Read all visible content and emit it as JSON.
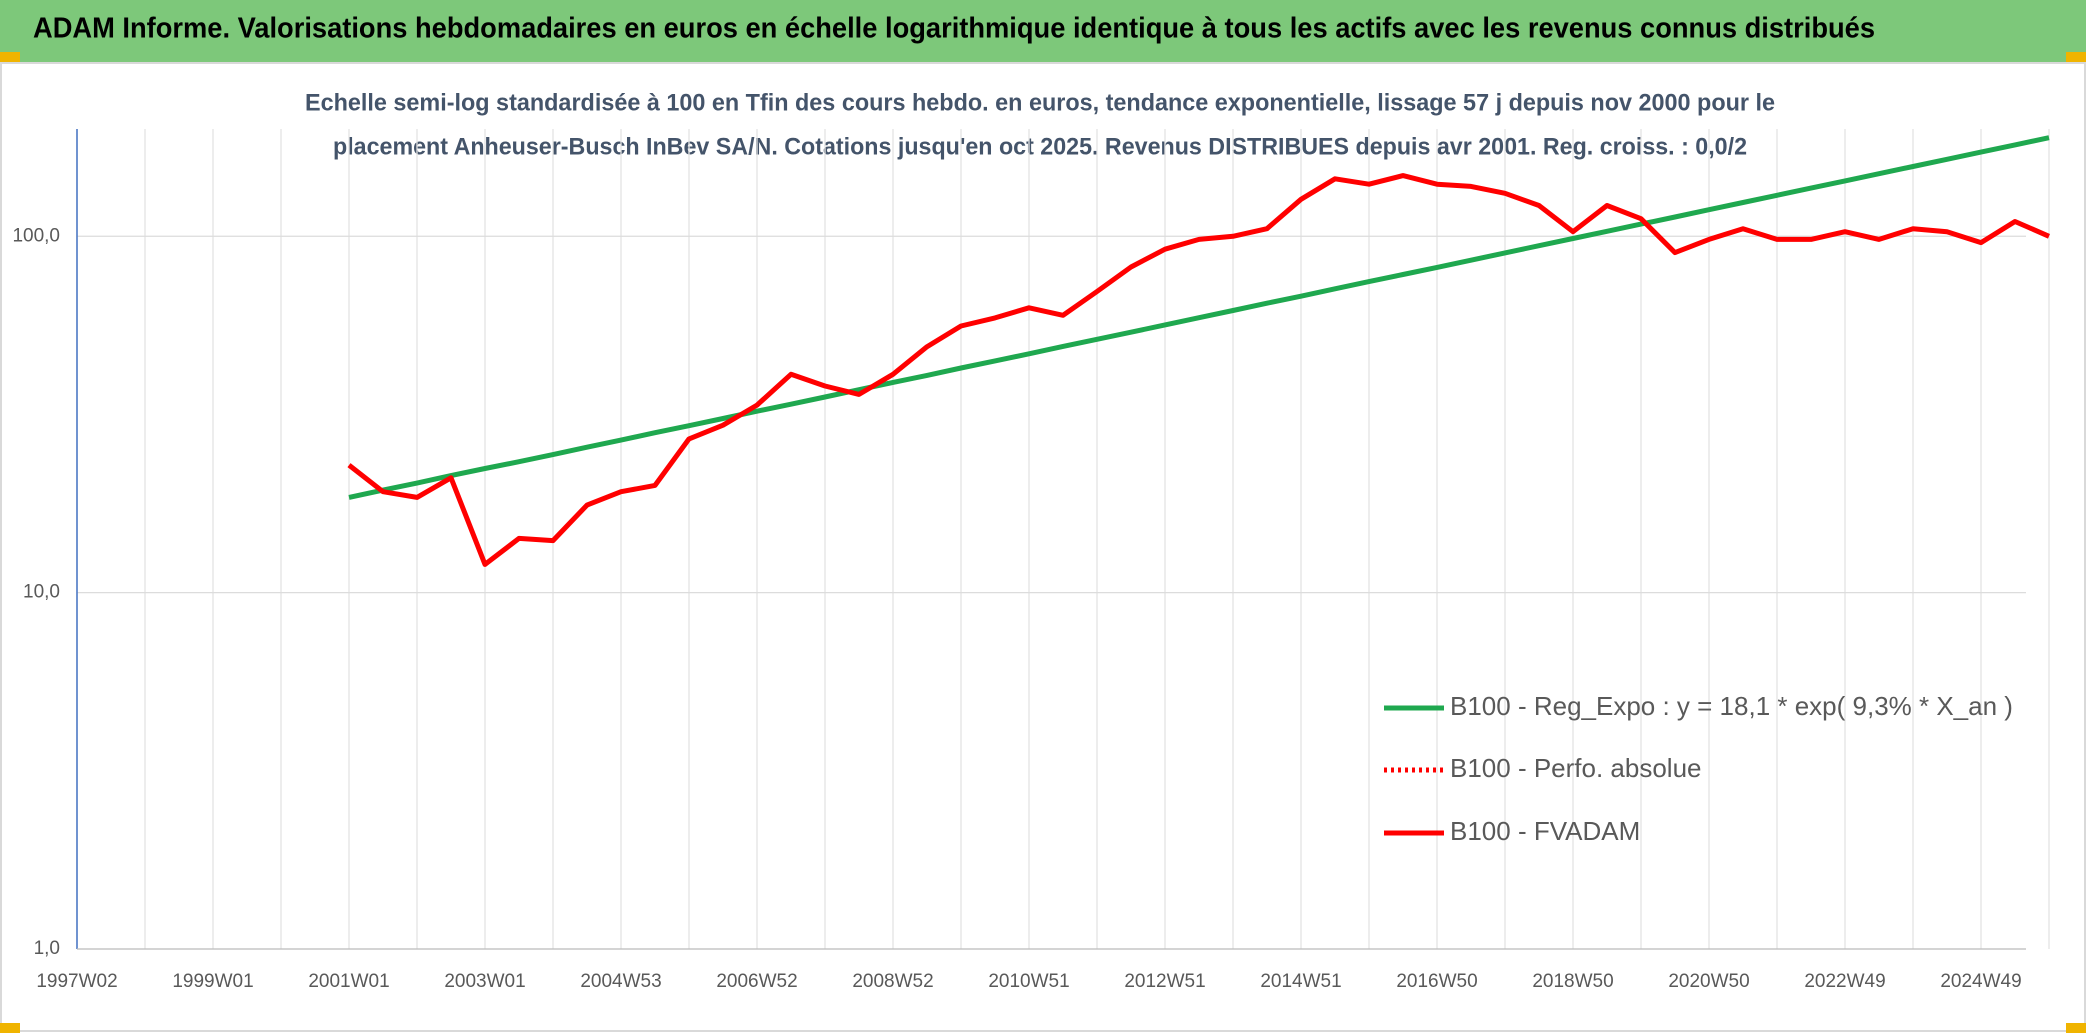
{
  "chart_data": {
    "type": "line",
    "title": "ADAM Informe. Valorisations hebdomadaires en euros en échelle logarithmique identique à tous les actifs avec les revenus connus distribués",
    "subtitle": [
      "Echelle semi-log standardisée à 100 en Tfin des cours hebdo. en euros, tendance exponentielle, lissage 57 j depuis nov 2000 pour le",
      "placement Anheuser-Busch InBev SA/N. Cotations jusqu'en oct 2025. Revenus DISTRIBUES depuis avr 2001. Reg. croiss. : 0,0/2"
    ],
    "categories": [
      "1997W02",
      null,
      null,
      null,
      "1999W01",
      null,
      null,
      null,
      "2001W01",
      null,
      null,
      null,
      "2003W01",
      null,
      null,
      null,
      "2004W53",
      null,
      null,
      null,
      "2006W52",
      null,
      null,
      null,
      "2008W52",
      null,
      null,
      null,
      "2010W51",
      null,
      null,
      null,
      "2012W51",
      null,
      null,
      null,
      "2014W51",
      null,
      null,
      null,
      "2016W50",
      null,
      null,
      null,
      "2018W50",
      null,
      null,
      null,
      "2020W50",
      null,
      null,
      null,
      "2022W49",
      null,
      null,
      null,
      "2024W49",
      null,
      null
    ],
    "log_scale": true,
    "ylim": [
      1,
      200
    ],
    "yticks": [
      {
        "value": 1,
        "label": "1,0"
      },
      {
        "value": 10,
        "label": "10,0"
      },
      {
        "value": 100,
        "label": "100,0"
      }
    ],
    "grid": true,
    "legend": "right",
    "series": [
      {
        "name": "B100 - Reg_Expo : y = 18,1 * exp( 9,3% *  X_an )",
        "color": "#1fa84f",
        "dash": "solid",
        "values": [
          null,
          null,
          null,
          null,
          null,
          null,
          null,
          null,
          18.5,
          19.4,
          20.3,
          21.3,
          22.3,
          23.3,
          24.4,
          25.6,
          26.8,
          28.1,
          29.4,
          30.8,
          32.3,
          33.8,
          35.4,
          37.1,
          38.9,
          40.7,
          42.7,
          44.7,
          46.8,
          49.1,
          51.4,
          53.8,
          56.4,
          59.1,
          61.9,
          64.9,
          67.9,
          71.2,
          74.6,
          78.1,
          81.8,
          85.7,
          89.8,
          94.1,
          98.6,
          103.3,
          108.2,
          113.3,
          118.7,
          124.4,
          130.3,
          136.5,
          143.0,
          149.8,
          157.0,
          164.4,
          172.3,
          180.5,
          189.1
        ]
      },
      {
        "name": "B100 - Perfo. absolue",
        "color": "#ff0000",
        "dash": "dotted",
        "values": [
          null,
          null,
          null,
          null,
          null,
          null,
          null,
          null,
          null,
          null,
          null,
          null,
          null,
          null,
          null,
          null,
          null,
          null,
          null,
          null,
          null,
          null,
          null,
          null,
          null,
          null,
          null,
          null,
          null,
          null,
          null,
          null,
          null,
          null,
          null,
          null,
          null,
          null,
          null,
          null,
          null,
          null,
          null,
          null,
          null,
          null,
          null,
          null,
          null,
          null,
          null,
          null,
          null,
          null,
          null,
          null,
          null,
          null,
          null
        ]
      },
      {
        "name": "B100 - FVADAM",
        "color": "#ff0000",
        "dash": "solid",
        "values": [
          null,
          null,
          null,
          null,
          null,
          null,
          null,
          null,
          22.8,
          19.2,
          18.5,
          21,
          12,
          14.2,
          14,
          17.6,
          19.2,
          20,
          27,
          29.5,
          33.6,
          41,
          38,
          36,
          41,
          49,
          56,
          59,
          63,
          60,
          70,
          82,
          92,
          98,
          100,
          105,
          127,
          145,
          140,
          148,
          140,
          138,
          132,
          122,
          103,
          122,
          112,
          90,
          98,
          105,
          98,
          98,
          103,
          98,
          105,
          103,
          96,
          110,
          100
        ]
      }
    ]
  }
}
